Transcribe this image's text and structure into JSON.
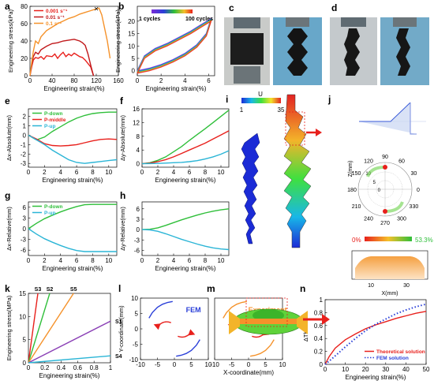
{
  "colors": {
    "red": "#e8201c",
    "darkred": "#c0181a",
    "green": "#2fbf3a",
    "cyan": "#2bb5d6",
    "orange": "#f5922a",
    "purple": "#8a3fb5",
    "blue": "#2a3fd8",
    "olive": "#9aa51e",
    "gray": "#8f8f8f",
    "black": "#000000"
  },
  "panels": [
    {
      "id": "a",
      "label": "a",
      "type": "line",
      "xlabel": "Engineering strain(%)",
      "ylabel": "Engineering stress(kPa)",
      "xlim": [
        0,
        160
      ],
      "ylim": [
        0,
        80
      ],
      "xticks": [
        0,
        40,
        80,
        120,
        160
      ],
      "yticks": [
        0,
        20,
        40,
        60,
        80
      ],
      "series": [
        {
          "name": "0.001 s⁻¹",
          "color": "#e8201c",
          "x": [
            0,
            3,
            6,
            10,
            15,
            20,
            25,
            30,
            40,
            45,
            50,
            55,
            60,
            65,
            70,
            75,
            80,
            85,
            90,
            95,
            100,
            110,
            115
          ],
          "y": [
            0,
            10,
            18,
            21,
            20,
            22,
            19,
            23,
            22,
            25,
            20,
            24,
            27,
            22,
            25,
            23,
            26,
            24,
            22,
            21,
            18,
            10,
            0
          ]
        },
        {
          "name": "0.01 s⁻¹",
          "color": "#c0181a",
          "x": [
            0,
            3,
            6,
            10,
            15,
            20,
            30,
            40,
            50,
            60,
            70,
            80,
            90,
            95,
            100,
            105,
            110,
            115
          ],
          "y": [
            0,
            12,
            22,
            27,
            25,
            30,
            34,
            37,
            38,
            40,
            41,
            42,
            40,
            38,
            35,
            25,
            12,
            0
          ]
        },
        {
          "name": "0.1 s⁻¹",
          "color": "#f5922a",
          "x": [
            0,
            3,
            6,
            10,
            15,
            20,
            30,
            40,
            50,
            60,
            70,
            80,
            90,
            100,
            110,
            120,
            125,
            130,
            140,
            145
          ],
          "y": [
            0,
            15,
            28,
            40,
            37,
            45,
            52,
            56,
            60,
            63,
            66,
            68,
            71,
            73,
            75,
            77,
            78,
            70,
            40,
            20
          ]
        }
      ],
      "markers": [
        {
          "x": 120,
          "y": 77,
          "symbol": "×"
        }
      ],
      "legend_position": "top-left"
    },
    {
      "id": "b",
      "label": "b",
      "type": "line",
      "xlabel": "Engineering strain(%)",
      "ylabel": "Engineering stress(kPa)",
      "xlim": [
        0,
        6.5
      ],
      "ylim": [
        -2,
        26
      ],
      "xticks": [
        0,
        2,
        4,
        6
      ],
      "yticks": [
        0,
        5,
        10,
        15,
        20
      ],
      "colorbar": {
        "left": "1 cycles",
        "right": "100 cycles"
      },
      "loop_upper": {
        "x": [
          0,
          0.6,
          1.5,
          2.5,
          3.5,
          4.5,
          5.5,
          6.2
        ],
        "y": [
          0,
          6,
          9,
          11,
          13.5,
          16,
          19,
          21
        ]
      },
      "loop_lower": {
        "x": [
          0,
          1,
          2,
          3,
          4,
          5,
          5.8,
          6.2
        ],
        "y": [
          0,
          1,
          2.5,
          4.5,
          7,
          10.5,
          15,
          21
        ]
      }
    },
    {
      "id": "e",
      "label": "e",
      "type": "line",
      "xlabel": "Engineering strain(%)",
      "ylabel": "Δx-Absolute(mm)",
      "xlim": [
        0,
        11
      ],
      "ylim": [
        -3.4,
        2.8
      ],
      "xticks": [
        0,
        2,
        4,
        6,
        8,
        10
      ],
      "yticks": [
        -3,
        -2,
        -1,
        0,
        1,
        2
      ],
      "series": [
        {
          "name": "P-down",
          "color": "#2fbf3a",
          "x": [
            0,
            1,
            2,
            3,
            4,
            5,
            6,
            7,
            8,
            9,
            10,
            11
          ],
          "y": [
            0,
            -0.5,
            -0.2,
            0.4,
            0.9,
            1.4,
            1.8,
            2.1,
            2.3,
            2.4,
            2.45,
            2.45
          ]
        },
        {
          "name": "P-middle",
          "color": "#e8201c",
          "x": [
            0,
            1,
            2,
            3,
            4,
            5,
            6,
            7,
            8,
            9,
            10,
            11
          ],
          "y": [
            0,
            -0.4,
            -0.9,
            -1.1,
            -1.15,
            -1.1,
            -1.0,
            -0.8,
            -0.6,
            -0.45,
            -0.4,
            -0.45
          ]
        },
        {
          "name": "P-up",
          "color": "#2bb5d6",
          "x": [
            0,
            1,
            2,
            3,
            4,
            5,
            6,
            7,
            8,
            9,
            10,
            11
          ],
          "y": [
            0,
            -0.5,
            -1.0,
            -1.6,
            -2.1,
            -2.6,
            -2.9,
            -3.0,
            -2.9,
            -2.8,
            -2.7,
            -2.6
          ]
        }
      ],
      "legend_position": "top-left"
    },
    {
      "id": "f",
      "label": "f",
      "type": "line",
      "xlabel": "Engineering strain(%)",
      "ylabel": "Δy-Absolute(mm)",
      "xlim": [
        0,
        11
      ],
      "ylim": [
        -1,
        16
      ],
      "xticks": [
        0,
        2,
        4,
        6,
        8,
        10
      ],
      "yticks": [
        0,
        4,
        8,
        12,
        16
      ],
      "series": [
        {
          "name": "P-down",
          "color": "#2fbf3a",
          "x": [
            0,
            1,
            2,
            3,
            4,
            5,
            6,
            7,
            8,
            9,
            10,
            11
          ],
          "y": [
            0,
            0.3,
            1.0,
            2.0,
            3.5,
            5.0,
            6.8,
            8.5,
            10.2,
            12.0,
            13.8,
            15.6
          ]
        },
        {
          "name": "P-middle",
          "color": "#e8201c",
          "x": [
            0,
            1,
            2,
            3,
            4,
            5,
            6,
            7,
            8,
            9,
            10,
            11
          ],
          "y": [
            0,
            0.2,
            0.6,
            1.2,
            2.0,
            3.0,
            4.0,
            5.0,
            6.0,
            7.2,
            8.4,
            9.6
          ]
        },
        {
          "name": "P-up",
          "color": "#2bb5d6",
          "x": [
            0,
            1,
            2,
            3,
            4,
            5,
            6,
            7,
            8,
            9,
            10,
            11
          ],
          "y": [
            0,
            0.05,
            0.1,
            0.2,
            0.3,
            0.4,
            0.6,
            0.9,
            1.4,
            2.0,
            2.8,
            3.8
          ]
        }
      ]
    },
    {
      "id": "g",
      "label": "g",
      "type": "line",
      "xlabel": "Engineering strain(%)",
      "ylabel": "Δx-Relative(mm)",
      "xlim": [
        0,
        11
      ],
      "ylim": [
        -7.5,
        7.5
      ],
      "xticks": [
        0,
        2,
        4,
        6,
        8,
        10
      ],
      "yticks": [
        -6,
        -3,
        0,
        3,
        6
      ],
      "series": [
        {
          "name": "P-down",
          "color": "#2fbf3a",
          "x": [
            0,
            1,
            2,
            3,
            4,
            5,
            6,
            7,
            8,
            9,
            10,
            11
          ],
          "y": [
            0,
            1.5,
            2.8,
            3.8,
            4.7,
            5.5,
            6.2,
            6.7,
            6.8,
            6.8,
            6.8,
            6.8
          ]
        },
        {
          "name": "P-up",
          "color": "#2bb5d6",
          "x": [
            0,
            1,
            2,
            3,
            4,
            5,
            6,
            7,
            8,
            9,
            10,
            11
          ],
          "y": [
            0,
            -1.5,
            -2.8,
            -3.8,
            -4.7,
            -5.5,
            -6.1,
            -6.4,
            -6.4,
            -6.4,
            -6.4,
            -6.4
          ]
        }
      ],
      "legend_position": "top-left"
    },
    {
      "id": "h",
      "label": "h",
      "type": "line",
      "xlabel": "Engineering strain(%)",
      "ylabel": "Δy-Relative(mm)",
      "xlim": [
        0,
        11
      ],
      "ylim": [
        -7.5,
        8
      ],
      "xticks": [
        0,
        2,
        4,
        6,
        8,
        10
      ],
      "yticks": [
        -6,
        -3,
        0,
        3,
        6
      ],
      "series": [
        {
          "name": "P-down",
          "color": "#2fbf3a",
          "x": [
            0,
            1,
            2,
            3,
            4,
            5,
            6,
            7,
            8,
            9,
            10,
            11
          ],
          "y": [
            0,
            0.1,
            0.5,
            1.2,
            2.0,
            2.8,
            3.5,
            4.2,
            4.8,
            5.3,
            5.7,
            6.0
          ]
        },
        {
          "name": "P-up",
          "color": "#2bb5d6",
          "x": [
            0,
            1,
            2,
            3,
            4,
            5,
            6,
            7,
            8,
            9,
            10,
            11
          ],
          "y": [
            0,
            -0.1,
            -0.5,
            -1.2,
            -2.0,
            -2.8,
            -3.5,
            -4.2,
            -4.8,
            -5.3,
            -5.6,
            -5.8
          ]
        }
      ]
    },
    {
      "id": "k",
      "label": "k",
      "type": "line",
      "xlabel": "Engineering strain(%)",
      "ylabel": "Engineering stress(MPa)",
      "xlim": [
        0,
        1
      ],
      "ylim": [
        0,
        15
      ],
      "xticks": [
        0,
        0.2,
        0.4,
        0.6,
        0.8,
        1.0
      ],
      "yticks": [
        0,
        5,
        10,
        15
      ],
      "series": [
        {
          "name": "S3",
          "color": "#e8201c",
          "x": [
            0,
            0.115
          ],
          "y": [
            0,
            15
          ]
        },
        {
          "name": "S2",
          "color": "#2fbf3a",
          "x": [
            0,
            0.26
          ],
          "y": [
            0,
            15
          ]
        },
        {
          "name": "S5",
          "color": "#f5922a",
          "x": [
            0,
            0.55
          ],
          "y": [
            0,
            15
          ]
        },
        {
          "name": "S1",
          "color": "#8a3fb5",
          "x": [
            0,
            1.0
          ],
          "y": [
            0,
            9
          ]
        },
        {
          "name": "S4",
          "color": "#2bb5d6",
          "x": [
            0,
            1.0
          ],
          "y": [
            0,
            1.5
          ]
        }
      ]
    },
    {
      "id": "l",
      "label": "l",
      "type": "line",
      "title": "FEM",
      "xlabel": "",
      "ylabel": "Y-coordinate(mm)",
      "xlim": [
        -10,
        10
      ],
      "ylim": [
        -10,
        10
      ],
      "xticks": [
        -10,
        -5,
        0,
        5,
        10
      ],
      "yticks": [
        -10,
        -5,
        0,
        5,
        10
      ],
      "series": [
        {
          "name": "",
          "color": "#2a3fd8",
          "x": [
            -7.5,
            -6.5,
            -5,
            -3.5,
            -2,
            -0.5
          ],
          "y": [
            3.5,
            5.3,
            7.0,
            8.0,
            8.6,
            8.9
          ]
        },
        {
          "name": "",
          "color": "#2a3fd8",
          "x": [
            0.5,
            2,
            3.5,
            5,
            6.5,
            7.5
          ],
          "y": [
            -8.9,
            -8.6,
            -8.0,
            -7.0,
            -5.3,
            -3.5
          ]
        }
      ]
    },
    {
      "id": "m",
      "label": "m",
      "type": "line",
      "title": "Experiment",
      "xlabel": "X-coordinate(mm)",
      "ylabel": "",
      "xlim": [
        -10,
        10
      ],
      "ylim": [
        -10,
        10
      ],
      "xticks": [
        -10,
        -5,
        0,
        5,
        10
      ],
      "yticks": [],
      "series": [
        {
          "name": "",
          "color": "#f5922a",
          "x": [
            -7.5,
            -6.5,
            -5,
            -3.5,
            -2,
            -0.5
          ],
          "y": [
            3.5,
            5.3,
            7.0,
            8.0,
            8.6,
            8.9
          ]
        },
        {
          "name": "",
          "color": "#f5922a",
          "x": [
            0.5,
            2,
            3.5,
            5,
            6.5,
            7.5
          ],
          "y": [
            -8.9,
            -8.6,
            -8.0,
            -7.0,
            -5.3,
            -3.5
          ]
        }
      ]
    },
    {
      "id": "n",
      "label": "n",
      "type": "line",
      "xlabel": "Engineering strain(%)",
      "ylabel": "ΔTheta",
      "xlim": [
        0,
        50
      ],
      "ylim": [
        0,
        1
      ],
      "xticks": [
        0,
        10,
        20,
        30,
        40,
        50
      ],
      "yticks": [
        0,
        0.2,
        0.4,
        0.6,
        0.8,
        1.0
      ],
      "series": [
        {
          "name": "Theoretical solution",
          "color": "#e8201c",
          "style": "solid",
          "x": [
            0,
            2,
            5,
            10,
            15,
            20,
            25,
            30,
            35,
            40,
            45,
            50
          ],
          "y": [
            0,
            0.12,
            0.25,
            0.38,
            0.47,
            0.55,
            0.61,
            0.66,
            0.71,
            0.75,
            0.79,
            0.82
          ]
        },
        {
          "name": "FEM solution",
          "color": "#2a3fd8",
          "style": "dotted",
          "x": [
            0,
            2,
            5,
            10,
            15,
            20,
            25,
            30,
            35,
            40,
            45,
            50
          ],
          "y": [
            0,
            0.05,
            0.13,
            0.27,
            0.4,
            0.52,
            0.62,
            0.7,
            0.78,
            0.84,
            0.89,
            0.93
          ]
        }
      ],
      "legend_position": "bottom-right"
    }
  ],
  "j_panel": {
    "label": "j",
    "polar": {
      "angles": [
        "90",
        "60",
        "30",
        "0",
        "330",
        "300",
        "270",
        "240",
        "210",
        "180",
        "150",
        "120"
      ],
      "radii": [
        "0",
        "5",
        "10"
      ],
      "radial_label": "Z(mm)"
    },
    "colorbar": {
      "left": "0%",
      "right": "53.3%"
    },
    "bottom": {
      "xlabel": "X(mm)",
      "xticks": [
        "10",
        "30"
      ]
    }
  },
  "i_panel": {
    "label": "i",
    "colorbar": {
      "title": "U",
      "min": "1",
      "max": "35"
    }
  },
  "photos": [
    {
      "label": "c"
    },
    {
      "label": "d"
    }
  ]
}
